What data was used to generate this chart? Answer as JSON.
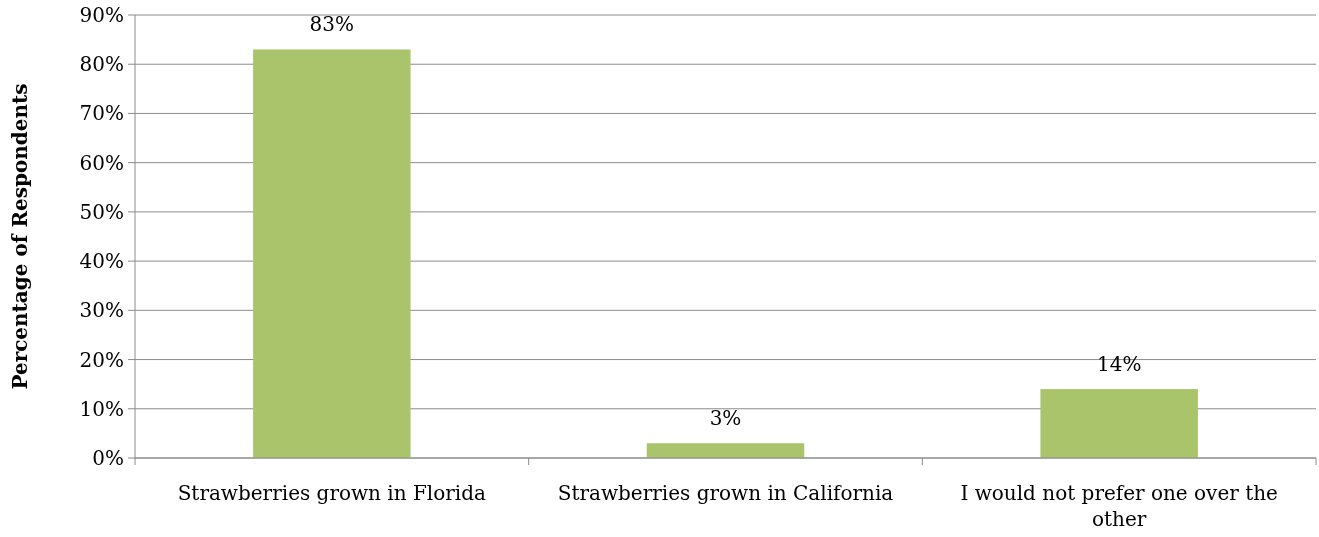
{
  "chart_data": {
    "type": "bar",
    "ylabel": "Percentage of Respondents",
    "categories": [
      "Strawberries grown in Florida",
      "Strawberries grown in California",
      "I would not prefer one over the other"
    ],
    "values": [
      83,
      3,
      14
    ],
    "color": "#a9c46a",
    "value_labels": [
      "83%",
      "3%",
      "14%"
    ],
    "ylim": [
      0,
      90
    ],
    "yticks": [
      {
        "value": 0,
        "label": "0%"
      },
      {
        "value": 10,
        "label": "10%"
      },
      {
        "value": 20,
        "label": "20%"
      },
      {
        "value": 30,
        "label": "30%"
      },
      {
        "value": 40,
        "label": "40%"
      },
      {
        "value": 50,
        "label": "50%"
      },
      {
        "value": 60,
        "label": "60%"
      },
      {
        "value": 70,
        "label": "70%"
      },
      {
        "value": 80,
        "label": "80%"
      },
      {
        "value": 90,
        "label": "90%"
      }
    ],
    "grid": "y"
  }
}
